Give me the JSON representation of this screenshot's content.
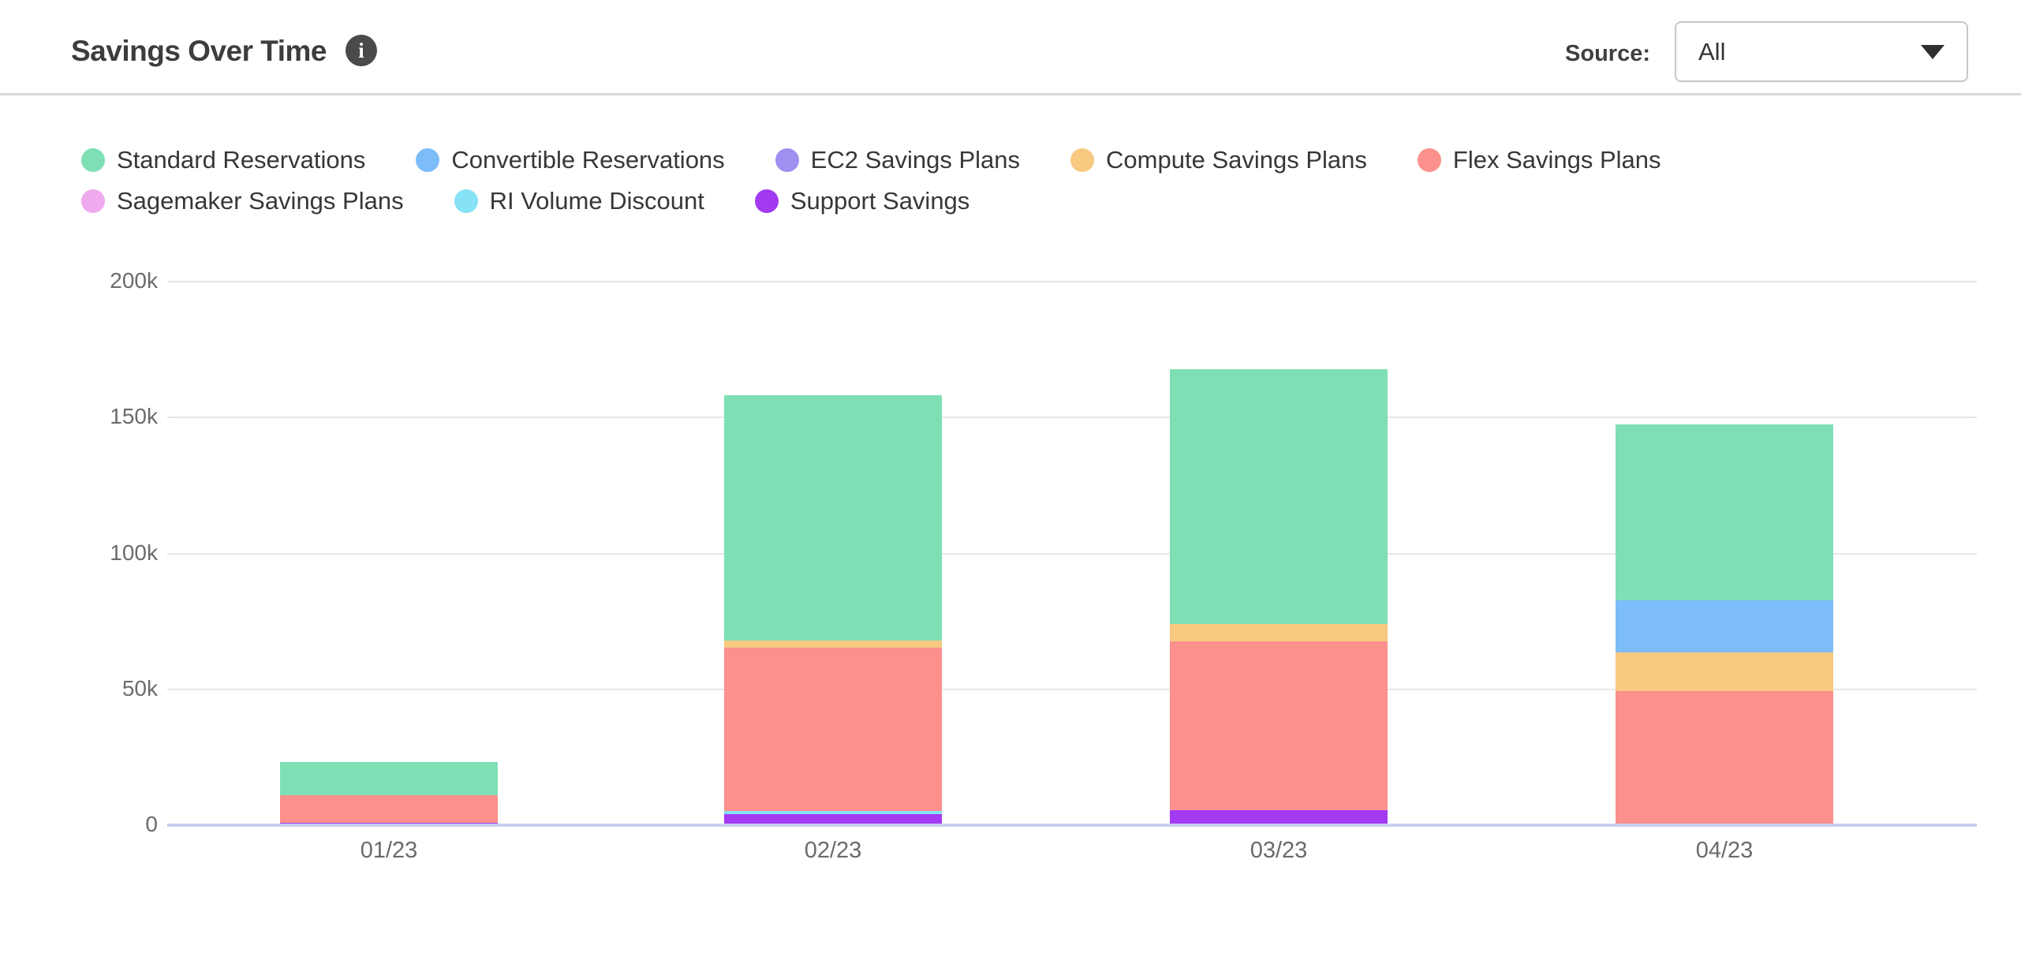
{
  "header": {
    "title": "Savings Over Time",
    "info_icon": "i",
    "source_label": "Source:",
    "source_value": "All"
  },
  "chart_data": {
    "type": "bar",
    "stacked": true,
    "title": "Savings Over Time",
    "unit": "values in thousands (k)",
    "categories": [
      "01/23",
      "02/23",
      "03/23",
      "04/23"
    ],
    "series": [
      {
        "name": "Standard Reservations",
        "color": "#7edfb4",
        "values": [
          12.2,
          90.3,
          93.9,
          64.7
        ]
      },
      {
        "name": "Convertible Reservations",
        "color": "#7cbcf9",
        "values": [
          0,
          0,
          0,
          19.2
        ]
      },
      {
        "name": "EC2 Savings Plans",
        "color": "#9d90f0",
        "values": [
          0,
          0,
          0,
          0
        ]
      },
      {
        "name": "Compute Savings Plans",
        "color": "#f7c981",
        "values": [
          0,
          2.6,
          6.4,
          14.2
        ]
      },
      {
        "name": "Flex Savings Plans",
        "color": "#fb908c",
        "values": [
          10.3,
          60.1,
          62.1,
          49.3
        ]
      },
      {
        "name": "Sagemaker Savings Plans",
        "color": "#efa9ed",
        "values": [
          0,
          0,
          0,
          0
        ]
      },
      {
        "name": "RI Volume Discount",
        "color": "#87e2f6",
        "values": [
          0,
          1.2,
          0,
          0
        ]
      },
      {
        "name": "Support Savings",
        "color": "#a33af2",
        "values": [
          0.8,
          4.1,
          5.5,
          0
        ]
      }
    ],
    "stack_order_bottom_to_top": [
      "Support Savings",
      "RI Volume Discount",
      "Sagemaker Savings Plans",
      "Flex Savings Plans",
      "Compute Savings Plans",
      "EC2 Savings Plans",
      "Convertible Reservations",
      "Standard Reservations"
    ],
    "totals_thousands": [
      23.3,
      158.3,
      167.9,
      147.4
    ],
    "yticks": [
      {
        "label": "0",
        "value": 0
      },
      {
        "label": "50k",
        "value": 50
      },
      {
        "label": "100k",
        "value": 100
      },
      {
        "label": "150k",
        "value": 150
      },
      {
        "label": "200k",
        "value": 200
      }
    ],
    "ylim_thousands": [
      0,
      200
    ],
    "grid": true,
    "legend_position": "top"
  },
  "colors": {
    "axis_baseline": "#c8cfee",
    "gridline": "#e7e7e7",
    "axis_text": "#6b6b6b",
    "legend_text": "#373737",
    "title_text": "#3d3d3d",
    "info_badge_bg": "#4a4a4a",
    "header_divider": "#d9d9d9",
    "select_border": "#c6c6c6"
  }
}
